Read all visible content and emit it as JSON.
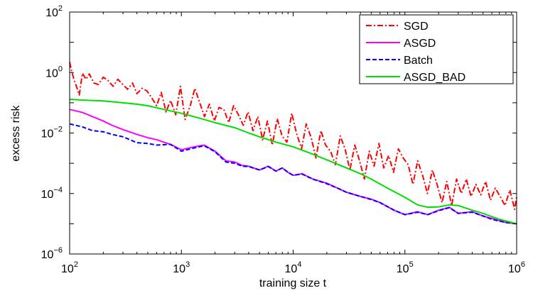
{
  "chart_data": {
    "type": "line",
    "xscale": "log",
    "yscale": "log",
    "xlim": [
      100,
      1000000
    ],
    "ylim": [
      1e-06,
      100
    ],
    "xlabel": "training size t",
    "ylabel": "excess risk",
    "xticks": [
      {
        "base": "10",
        "exp": "2",
        "value": 100
      },
      {
        "base": "10",
        "exp": "3",
        "value": 1000
      },
      {
        "base": "10",
        "exp": "4",
        "value": 10000
      },
      {
        "base": "10",
        "exp": "5",
        "value": 100000
      },
      {
        "base": "10",
        "exp": "6",
        "value": 1000000
      }
    ],
    "yticks": [
      {
        "base": "10",
        "exp": "−6",
        "value": 1e-06
      },
      {
        "base": "10",
        "exp": "−4",
        "value": 0.0001
      },
      {
        "base": "10",
        "exp": "−2",
        "value": 0.01
      },
      {
        "base": "10",
        "exp": "0",
        "value": 1
      },
      {
        "base": "10",
        "exp": "2",
        "value": 100
      }
    ],
    "legend_position": "top-right",
    "series": [
      {
        "name": "SGD",
        "color": "#ff0000",
        "style": "dashdot",
        "x": [
          100,
          105,
          110,
          115,
          122,
          130,
          140,
          150,
          165,
          180,
          200,
          220,
          245,
          270,
          300,
          330,
          365,
          400,
          445,
          490,
          540,
          600,
          660,
          730,
          800,
          890,
          980,
          1080,
          1200,
          1320,
          1460,
          1610,
          1780,
          1970,
          2170,
          2400,
          2650,
          2930,
          3240,
          3580,
          3950,
          4370,
          4830,
          5330,
          5890,
          6510,
          7200,
          7950,
          8790,
          9710,
          10700,
          11900,
          13100,
          14500,
          16000,
          17700,
          19500,
          21600,
          23900,
          26400,
          29100,
          32200,
          35600,
          39300,
          43400,
          48000,
          53000,
          58600,
          64700,
          71500,
          79100,
          87400,
          96500,
          107000,
          118000,
          130000,
          144000,
          159000,
          176000,
          194000,
          215000,
          237000,
          262000,
          290000,
          320000,
          354000,
          391000,
          432000,
          477000,
          527000,
          583000,
          644000,
          712000,
          786000,
          869000,
          960000,
          1000000
        ],
        "y": [
          2.2,
          1.0,
          0.55,
          0.35,
          0.18,
          0.95,
          0.6,
          0.9,
          0.45,
          0.4,
          0.7,
          0.55,
          0.35,
          0.6,
          0.4,
          0.28,
          0.45,
          0.2,
          0.3,
          0.25,
          0.15,
          0.08,
          0.22,
          0.05,
          0.12,
          0.04,
          0.35,
          0.028,
          0.08,
          0.3,
          0.1,
          0.035,
          0.09,
          0.025,
          0.07,
          0.06,
          0.022,
          0.08,
          0.04,
          0.018,
          0.05,
          0.012,
          0.035,
          0.006,
          0.025,
          0.004,
          0.03,
          0.008,
          0.005,
          0.045,
          0.01,
          0.003,
          0.02,
          0.007,
          0.0015,
          0.012,
          0.004,
          0.0025,
          0.0009,
          0.008,
          0.003,
          0.0006,
          0.004,
          0.0012,
          0.0003,
          0.0025,
          0.0008,
          0.0045,
          0.0007,
          0.0018,
          0.0005,
          0.003,
          0.0015,
          0.0009,
          0.0002,
          0.0012,
          0.0004,
          0.0001,
          0.0006,
          0.0002,
          5e-05,
          0.00025,
          4e-05,
          0.0003,
          0.0001,
          0.0003,
          8e-05,
          0.0002,
          9e-05,
          0.00025,
          6e-05,
          0.00015,
          8e-05,
          4e-05,
          0.00013,
          3e-05,
          8e-05
        ]
      },
      {
        "name": "ASGD",
        "color": "#ff00ff",
        "style": "solid",
        "x": [
          100,
          130,
          160,
          200,
          240,
          300,
          400,
          500,
          600,
          800,
          1000,
          1300,
          1600,
          2000,
          2500,
          3000,
          3500,
          4000,
          5000,
          6000,
          7000,
          8000,
          9000,
          10000,
          12000,
          15000,
          20000,
          25000,
          30000,
          40000,
          50000,
          60000,
          80000,
          100000,
          130000,
          160000,
          200000,
          250000,
          300000,
          400000,
          500000,
          600000,
          800000,
          1000000
        ],
        "y": [
          0.06,
          0.048,
          0.035,
          0.025,
          0.018,
          0.013,
          0.009,
          0.007,
          0.006,
          0.0042,
          0.0028,
          0.0035,
          0.004,
          0.0025,
          0.0012,
          0.0011,
          0.00085,
          0.0008,
          0.0006,
          0.0008,
          0.00055,
          0.0007,
          0.0005,
          0.0004,
          0.00045,
          0.0003,
          0.00022,
          0.00015,
          0.00011,
          8e-05,
          6.5e-05,
          5e-05,
          2.8e-05,
          2e-05,
          2.5e-05,
          2e-05,
          2.8e-05,
          3.5e-05,
          2.2e-05,
          2.5e-05,
          1.8e-05,
          1.5e-05,
          1.1e-05,
          1e-05
        ]
      },
      {
        "name": "Batch",
        "color": "#0000ff",
        "style": "dashed",
        "x": [
          100,
          130,
          160,
          200,
          240,
          300,
          400,
          500,
          600,
          800,
          1000,
          1300,
          1600,
          2000,
          2500,
          3000,
          3500,
          4000,
          5000,
          6000,
          7000,
          8000,
          9000,
          10000,
          12000,
          15000,
          20000,
          25000,
          30000,
          40000,
          50000,
          60000,
          80000,
          100000,
          130000,
          160000,
          200000,
          250000,
          300000,
          400000,
          500000,
          600000,
          800000,
          1000000
        ],
        "y": [
          0.02,
          0.016,
          0.012,
          0.011,
          0.009,
          0.0075,
          0.0048,
          0.0045,
          0.004,
          0.0042,
          0.0025,
          0.0032,
          0.0038,
          0.0024,
          0.0011,
          0.001,
          0.0008,
          0.00078,
          0.0006,
          0.00078,
          0.00055,
          0.0007,
          0.0005,
          0.0004,
          0.00044,
          0.0003,
          0.00021,
          0.00015,
          0.00011,
          8e-05,
          6.3e-05,
          5e-05,
          2.8e-05,
          2e-05,
          2.4e-05,
          2e-05,
          2.7e-05,
          3.4e-05,
          2.2e-05,
          2.4e-05,
          1.8e-05,
          1.4e-05,
          1.1e-05,
          1e-05
        ]
      },
      {
        "name": "ASGD_BAD",
        "color": "#00dd00",
        "style": "solid",
        "x": [
          100,
          150,
          200,
          300,
          400,
          500,
          700,
          1000,
          1500,
          2000,
          3000,
          4000,
          5000,
          7000,
          10000,
          15000,
          20000,
          30000,
          40000,
          50000,
          70000,
          100000,
          130000,
          160000,
          200000,
          250000,
          300000,
          400000,
          500000,
          700000,
          1000000
        ],
        "y": [
          0.13,
          0.12,
          0.115,
          0.1,
          0.09,
          0.08,
          0.06,
          0.045,
          0.03,
          0.022,
          0.015,
          0.01,
          0.0075,
          0.005,
          0.0035,
          0.002,
          0.0013,
          0.0007,
          0.00045,
          0.0003,
          0.00015,
          7.5e-05,
          4.2e-05,
          3.5e-05,
          3.6e-05,
          4.2e-05,
          4e-05,
          2.8e-05,
          2.2e-05,
          1.4e-05,
          1e-05
        ]
      }
    ]
  }
}
